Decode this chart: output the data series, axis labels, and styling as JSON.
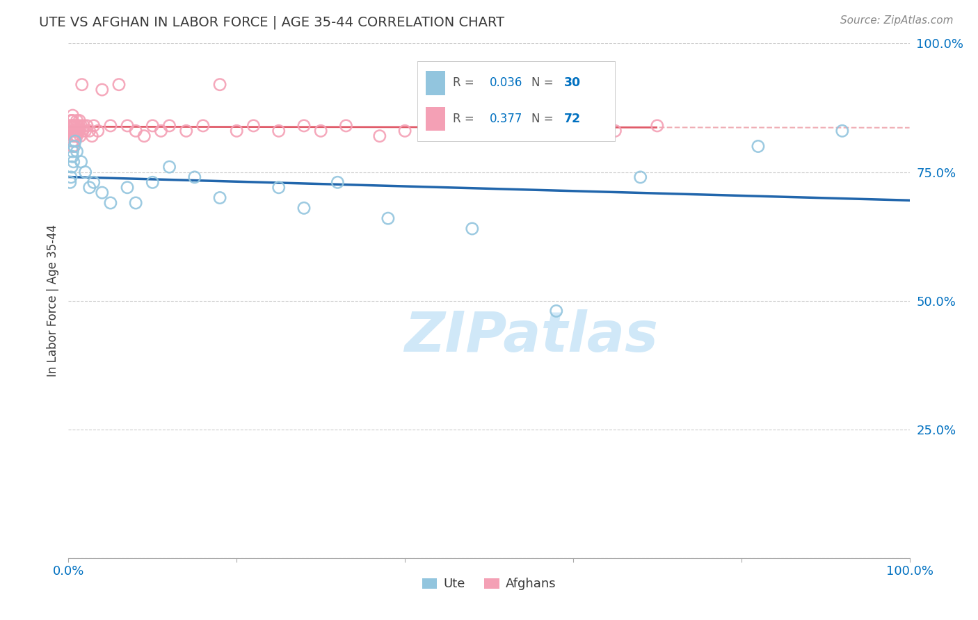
{
  "title": "UTE VS AFGHAN IN LABOR FORCE | AGE 35-44 CORRELATION CHART",
  "source": "Source: ZipAtlas.com",
  "ylabel": "In Labor Force | Age 35-44",
  "ute_R": 0.036,
  "ute_N": 30,
  "afghan_R": 0.377,
  "afghan_N": 72,
  "ute_color": "#92c5de",
  "afghan_color": "#f4a0b5",
  "ute_line_color": "#2166ac",
  "afghan_line_color": "#e05c6a",
  "background_color": "#ffffff",
  "text_color": "#3a3a3a",
  "axis_color": "#0070c0",
  "watermark_color": "#d6eaf8",
  "ute_x": [
    0.002,
    0.003,
    0.004,
    0.005,
    0.005,
    0.006,
    0.007,
    0.008,
    0.01,
    0.015,
    0.02,
    0.025,
    0.03,
    0.04,
    0.05,
    0.07,
    0.08,
    0.1,
    0.12,
    0.15,
    0.18,
    0.25,
    0.28,
    0.32,
    0.38,
    0.48,
    0.58,
    0.68,
    0.82,
    0.92
  ],
  "ute_y": [
    0.73,
    0.74,
    0.76,
    0.78,
    0.79,
    0.77,
    0.8,
    0.81,
    0.79,
    0.77,
    0.75,
    0.72,
    0.73,
    0.71,
    0.69,
    0.72,
    0.69,
    0.73,
    0.76,
    0.74,
    0.7,
    0.72,
    0.68,
    0.73,
    0.66,
    0.64,
    0.48,
    0.74,
    0.8,
    0.83
  ],
  "afghan_x": [
    0.002,
    0.003,
    0.003,
    0.004,
    0.004,
    0.004,
    0.005,
    0.005,
    0.005,
    0.005,
    0.005,
    0.005,
    0.005,
    0.005,
    0.006,
    0.006,
    0.006,
    0.007,
    0.007,
    0.007,
    0.008,
    0.008,
    0.008,
    0.009,
    0.009,
    0.01,
    0.01,
    0.01,
    0.01,
    0.011,
    0.012,
    0.012,
    0.013,
    0.013,
    0.014,
    0.015,
    0.016,
    0.017,
    0.018,
    0.02,
    0.022,
    0.025,
    0.028,
    0.03,
    0.035,
    0.04,
    0.05,
    0.06,
    0.07,
    0.08,
    0.09,
    0.1,
    0.11,
    0.12,
    0.14,
    0.16,
    0.18,
    0.2,
    0.22,
    0.25,
    0.28,
    0.3,
    0.33,
    0.37,
    0.4,
    0.44,
    0.48,
    0.52,
    0.56,
    0.6,
    0.65,
    0.7
  ],
  "afghan_y": [
    0.83,
    0.85,
    0.84,
    0.83,
    0.85,
    0.84,
    0.83,
    0.82,
    0.81,
    0.8,
    0.86,
    0.85,
    0.84,
    0.83,
    0.84,
    0.83,
    0.82,
    0.84,
    0.83,
    0.82,
    0.84,
    0.83,
    0.82,
    0.83,
    0.82,
    0.84,
    0.83,
    0.82,
    0.85,
    0.83,
    0.84,
    0.83,
    0.85,
    0.83,
    0.82,
    0.84,
    0.92,
    0.83,
    0.84,
    0.83,
    0.84,
    0.83,
    0.82,
    0.84,
    0.83,
    0.91,
    0.84,
    0.92,
    0.84,
    0.83,
    0.82,
    0.84,
    0.83,
    0.84,
    0.83,
    0.84,
    0.92,
    0.83,
    0.84,
    0.83,
    0.84,
    0.83,
    0.84,
    0.82,
    0.83,
    0.84,
    0.83,
    0.84,
    0.83,
    0.84,
    0.83,
    0.84
  ],
  "xlim": [
    0.0,
    1.0
  ],
  "ylim": [
    0.0,
    1.0
  ],
  "yticks": [
    0.0,
    0.25,
    0.5,
    0.75,
    1.0
  ],
  "ytick_labels": [
    "",
    "25.0%",
    "50.0%",
    "75.0%",
    "100.0%"
  ],
  "xtick_positions": [
    0.0,
    0.2,
    0.4,
    0.6,
    0.8,
    1.0
  ],
  "xtick_labels": [
    "0.0%",
    "",
    "",
    "",
    "",
    "100.0%"
  ]
}
